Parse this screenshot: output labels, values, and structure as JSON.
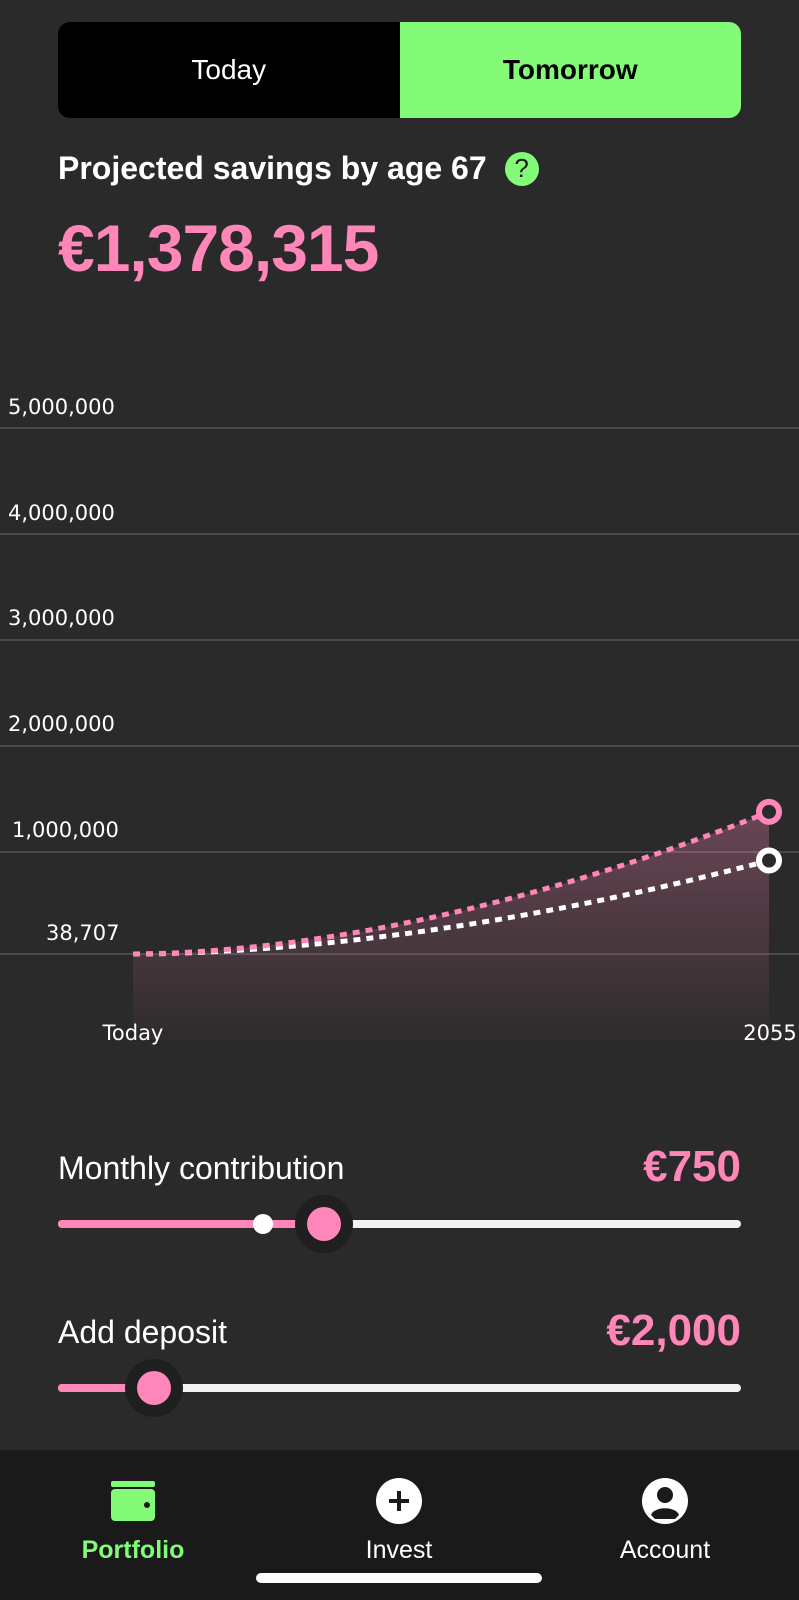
{
  "toggle": {
    "today_label": "Today",
    "tomorrow_label": "Tomorrow",
    "selected": "Tomorrow"
  },
  "projection": {
    "label": "Projected savings by age 67",
    "help_glyph": "?",
    "amount": "€1,378,315"
  },
  "chart_data": {
    "type": "line",
    "y_ticks": [
      "5,000,000",
      "4,000,000",
      "3,000,000",
      "2,000,000",
      "1,000,000",
      "38,707"
    ],
    "x_labels": [
      "Today",
      "2055"
    ],
    "ylim": [
      0,
      5000000
    ],
    "series": [
      {
        "color": "#ff86b8",
        "start": 38707,
        "end": 1378315
      },
      {
        "color": "#ffffff",
        "start": 38707,
        "end": 920000
      }
    ]
  },
  "sliders": {
    "monthly": {
      "title": "Monthly contribution",
      "value": "€750",
      "fraction": 0.39,
      "previous_fraction": 0.3
    },
    "deposit": {
      "title": "Add deposit",
      "value": "€2,000",
      "fraction": 0.14
    }
  },
  "nav": {
    "portfolio": "Portfolio",
    "invest": "Invest",
    "account": "Account",
    "active": "Portfolio"
  },
  "colors": {
    "accent_green": "#83fb79",
    "accent_pink": "#ff86b8",
    "background": "#2a2a2a"
  }
}
